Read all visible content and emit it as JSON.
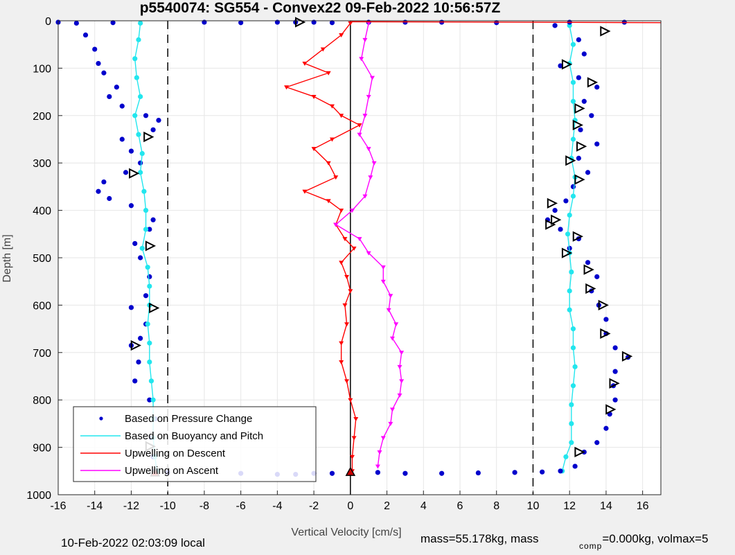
{
  "chart_data": {
    "type": "scatter",
    "title": "p5540074: SG554 - Convex22 09-Feb-2022 10:56:57Z",
    "xlabel": "Vertical Velocity [cm/s]",
    "ylabel": "Depth [m]",
    "xlim": [
      -16,
      17
    ],
    "ylim": [
      1000,
      0
    ],
    "y_reversed": true,
    "grid": true,
    "xticks": [
      "-16",
      "-14",
      "-12",
      "-10",
      "-8",
      "-6",
      "-4",
      "-2",
      "0",
      "2",
      "4",
      "6",
      "8",
      "10",
      "12",
      "14",
      "16"
    ],
    "yticks": [
      "0",
      "100",
      "200",
      "300",
      "400",
      "500",
      "600",
      "700",
      "800",
      "900",
      "1000"
    ],
    "reference_lines": [
      {
        "x": -10,
        "style": "dashed"
      },
      {
        "x": 0,
        "style": "solid"
      },
      {
        "x": 10,
        "style": "dashed"
      }
    ],
    "legend_position": "bottom-left",
    "legend": [
      {
        "label": "Based on Pressure Change",
        "color": "#0000cc",
        "marker": "dot"
      },
      {
        "label": "Based on Buoyancy and Pitch",
        "color": "#22e6ee",
        "marker": "line"
      },
      {
        "label": "Upwelling on Descent",
        "color": "#ff0000",
        "marker": "line"
      },
      {
        "label": "Upwelling on Ascent",
        "color": "#ff00ff",
        "marker": "line"
      }
    ],
    "series": [
      {
        "key": "pressure_descent",
        "color": "#0000cc",
        "style": "dots",
        "points": [
          [
            -15,
            5
          ],
          [
            -14.5,
            30
          ],
          [
            -14,
            60
          ],
          [
            -13.8,
            90
          ],
          [
            -13.5,
            110
          ],
          [
            -12.8,
            140
          ],
          [
            -13.2,
            160
          ],
          [
            -12.5,
            180
          ],
          [
            -11.2,
            200
          ],
          [
            -10.5,
            210
          ],
          [
            -10.8,
            230
          ],
          [
            -12.5,
            250
          ],
          [
            -12,
            275
          ],
          [
            -11.5,
            300
          ],
          [
            -12.3,
            320
          ],
          [
            -13.5,
            340
          ],
          [
            -13.8,
            360
          ],
          [
            -13.2,
            375
          ],
          [
            -12,
            390
          ],
          [
            -10.8,
            420
          ],
          [
            -11,
            440
          ],
          [
            -11.8,
            470
          ],
          [
            -11.5,
            500
          ],
          [
            -11,
            540
          ],
          [
            -11.2,
            580
          ],
          [
            -12,
            605
          ],
          [
            -11.2,
            640
          ],
          [
            -11.5,
            670
          ],
          [
            -12,
            685
          ],
          [
            -11.6,
            720
          ],
          [
            -11.8,
            760
          ],
          [
            -11,
            800
          ],
          [
            -10.7,
            840
          ],
          [
            -10.9,
            880
          ],
          [
            -10.8,
            920
          ],
          [
            -10.7,
            950
          ]
        ]
      },
      {
        "key": "buoyancy_descent",
        "color": "#22e6ee",
        "style": "dots-line",
        "points": [
          [
            -11.5,
            5
          ],
          [
            -11.6,
            40
          ],
          [
            -11.8,
            80
          ],
          [
            -11.7,
            120
          ],
          [
            -11.5,
            160
          ],
          [
            -11.8,
            200
          ],
          [
            -11.6,
            240
          ],
          [
            -11.4,
            280
          ],
          [
            -11.5,
            320
          ],
          [
            -11.3,
            360
          ],
          [
            -11.2,
            400
          ],
          [
            -11.2,
            440
          ],
          [
            -11.4,
            480
          ],
          [
            -11.1,
            520
          ],
          [
            -11,
            560
          ],
          [
            -11,
            600
          ],
          [
            -11.1,
            640
          ],
          [
            -11,
            680
          ],
          [
            -11,
            720
          ],
          [
            -10.9,
            760
          ],
          [
            -10.8,
            800
          ],
          [
            -10.8,
            840
          ],
          [
            -10.8,
            880
          ],
          [
            -10.7,
            920
          ],
          [
            -10.6,
            950
          ]
        ]
      },
      {
        "key": "pressure_ascent",
        "color": "#0000cc",
        "style": "dots",
        "points": [
          [
            11.2,
            10
          ],
          [
            12.5,
            40
          ],
          [
            12.8,
            70
          ],
          [
            11.5,
            95
          ],
          [
            12.5,
            120
          ],
          [
            13.5,
            140
          ],
          [
            12.8,
            170
          ],
          [
            13.2,
            200
          ],
          [
            12.6,
            230
          ],
          [
            13.5,
            260
          ],
          [
            12.5,
            290
          ],
          [
            13,
            320
          ],
          [
            12.2,
            350
          ],
          [
            11.8,
            380
          ],
          [
            11.2,
            400
          ],
          [
            10.8,
            420
          ],
          [
            11.5,
            440
          ],
          [
            12.5,
            460
          ],
          [
            12,
            480
          ],
          [
            13,
            510
          ],
          [
            13.5,
            540
          ],
          [
            13.2,
            570
          ],
          [
            13.6,
            600
          ],
          [
            14,
            630
          ],
          [
            14,
            660
          ],
          [
            14.5,
            690
          ],
          [
            15.2,
            710
          ],
          [
            14.5,
            740
          ],
          [
            14.4,
            770
          ],
          [
            14.5,
            800
          ],
          [
            14.2,
            830
          ],
          [
            14,
            860
          ],
          [
            13.5,
            890
          ],
          [
            12.8,
            910
          ],
          [
            12.3,
            940
          ]
        ]
      },
      {
        "key": "buoyancy_ascent",
        "color": "#22e6ee",
        "style": "dots-line",
        "points": [
          [
            12,
            10
          ],
          [
            12.2,
            50
          ],
          [
            12,
            90
          ],
          [
            12.2,
            130
          ],
          [
            12.2,
            170
          ],
          [
            12.3,
            210
          ],
          [
            12.2,
            250
          ],
          [
            12.1,
            290
          ],
          [
            12.3,
            330
          ],
          [
            12.2,
            370
          ],
          [
            12,
            410
          ],
          [
            11.9,
            450
          ],
          [
            12,
            490
          ],
          [
            12.1,
            530
          ],
          [
            12,
            570
          ],
          [
            12,
            610
          ],
          [
            12.2,
            650
          ],
          [
            12.2,
            690
          ],
          [
            12.3,
            730
          ],
          [
            12.2,
            770
          ],
          [
            12.1,
            810
          ],
          [
            12.1,
            850
          ],
          [
            12.1,
            890
          ],
          [
            11.8,
            920
          ],
          [
            11.6,
            950
          ]
        ]
      },
      {
        "key": "surface_descent",
        "color": "#0000cc",
        "style": "dots",
        "points": [
          [
            -16,
            3
          ],
          [
            -13,
            4
          ],
          [
            -8,
            3
          ],
          [
            -6,
            4
          ],
          [
            -4,
            3
          ],
          [
            -3,
            3
          ],
          [
            -2,
            3
          ],
          [
            -1,
            4
          ],
          [
            1,
            3
          ],
          [
            3,
            3
          ],
          [
            5,
            3
          ],
          [
            8,
            4
          ],
          [
            12,
            3
          ],
          [
            15,
            3
          ]
        ]
      },
      {
        "key": "bottom_turn",
        "color": "#0000cc",
        "style": "dots",
        "points": [
          [
            -10,
            953
          ],
          [
            -6,
            955
          ],
          [
            -4,
            957
          ],
          [
            -3,
            957
          ],
          [
            -2,
            955
          ],
          [
            -1,
            955
          ],
          [
            0,
            954
          ],
          [
            1.5,
            953
          ],
          [
            3,
            955
          ],
          [
            5,
            955
          ],
          [
            7,
            954
          ],
          [
            9,
            953
          ],
          [
            10.5,
            952
          ],
          [
            11.5,
            950
          ]
        ]
      },
      {
        "key": "upwelling_descent",
        "color": "#ff0000",
        "style": "line-markers",
        "points": [
          [
            0,
            5
          ],
          [
            -0.5,
            30
          ],
          [
            -1.5,
            60
          ],
          [
            -2.5,
            90
          ],
          [
            -1.2,
            110
          ],
          [
            -3.5,
            140
          ],
          [
            -2,
            160
          ],
          [
            -1,
            180
          ],
          [
            -0.5,
            200
          ],
          [
            0.5,
            220
          ],
          [
            -1,
            250
          ],
          [
            -2,
            270
          ],
          [
            -1.2,
            300
          ],
          [
            -0.8,
            330
          ],
          [
            -2.5,
            360
          ],
          [
            -1.2,
            380
          ],
          [
            -0.5,
            400
          ],
          [
            -0.8,
            430
          ],
          [
            -0.3,
            460
          ],
          [
            0.2,
            480
          ],
          [
            -0.5,
            510
          ],
          [
            -0.2,
            540
          ],
          [
            0,
            570
          ],
          [
            -0.3,
            600
          ],
          [
            -0.2,
            640
          ],
          [
            -0.5,
            680
          ],
          [
            -0.5,
            720
          ],
          [
            -0.2,
            760
          ],
          [
            0,
            800
          ],
          [
            0.3,
            840
          ],
          [
            0.2,
            880
          ],
          [
            0.1,
            920
          ],
          [
            0.1,
            950
          ]
        ]
      },
      {
        "key": "upwelling_ascent",
        "color": "#ff00ff",
        "style": "line-markers",
        "points": [
          [
            1,
            5
          ],
          [
            0.8,
            40
          ],
          [
            0.6,
            80
          ],
          [
            1.2,
            120
          ],
          [
            1,
            160
          ],
          [
            0.8,
            200
          ],
          [
            0.5,
            240
          ],
          [
            1,
            270
          ],
          [
            1.3,
            300
          ],
          [
            1.1,
            330
          ],
          [
            0.8,
            370
          ],
          [
            0.1,
            400
          ],
          [
            -0.8,
            430
          ],
          [
            0.5,
            460
          ],
          [
            1,
            490
          ],
          [
            1.8,
            520
          ],
          [
            1.8,
            550
          ],
          [
            2.2,
            580
          ],
          [
            2.1,
            610
          ],
          [
            2.5,
            640
          ],
          [
            2.3,
            670
          ],
          [
            2.8,
            700
          ],
          [
            2.7,
            730
          ],
          [
            2.8,
            760
          ],
          [
            2.7,
            790
          ],
          [
            2.3,
            820
          ],
          [
            2.2,
            850
          ],
          [
            1.8,
            880
          ],
          [
            1.6,
            910
          ],
          [
            1.5,
            940
          ]
        ]
      },
      {
        "key": "surface_descent_red",
        "color": "#ff0000",
        "style": "line",
        "points": [
          [
            0,
            2
          ],
          [
            10,
            3
          ],
          [
            17,
            4
          ]
        ]
      }
    ],
    "markers": [
      {
        "type": "triangle-right",
        "points": [
          [
            -2.8,
            3
          ],
          [
            13.9,
            22
          ],
          [
            11.8,
            92
          ],
          [
            13.2,
            130
          ],
          [
            12.5,
            185
          ],
          [
            12.4,
            220
          ],
          [
            12.6,
            265
          ],
          [
            12,
            295
          ],
          [
            12.5,
            335
          ],
          [
            11,
            385
          ],
          [
            11.2,
            420
          ],
          [
            10.9,
            430
          ],
          [
            12.4,
            455
          ],
          [
            11.8,
            490
          ],
          [
            13,
            525
          ],
          [
            13.1,
            565
          ],
          [
            13.8,
            600
          ],
          [
            13.9,
            660
          ],
          [
            15.1,
            708
          ],
          [
            14.4,
            765
          ],
          [
            14.2,
            820
          ],
          [
            12.5,
            910
          ],
          [
            -11.1,
            245
          ],
          [
            -11.9,
            322
          ],
          [
            -11,
            475
          ],
          [
            -10.8,
            606
          ],
          [
            -11.8,
            685
          ],
          [
            -11,
            898
          ]
        ]
      },
      {
        "type": "triangle-up",
        "points": [
          [
            -10.7,
            953
          ],
          [
            0,
            952
          ]
        ]
      }
    ]
  },
  "footer": {
    "local_time": "10-Feb-2022 02:03:09 local",
    "mass_text": "mass=55.178kg, mass",
    "comp_sub": "comp",
    "comp_text": "=0.000kg, volmax=5"
  }
}
